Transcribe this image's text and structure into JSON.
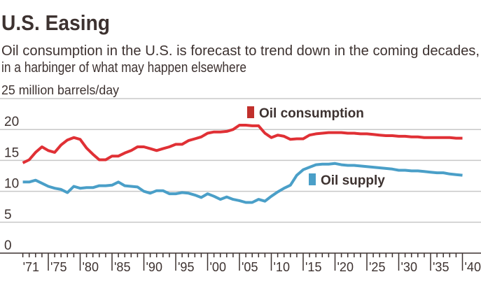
{
  "chart_data": {
    "type": "line",
    "title": "U.S. Easing",
    "subtitle_lines": [
      "Oil consumption in the U.S. is forecast to trend down in the coming decades,",
      "in a harbinger of what may happen elsewhere"
    ],
    "ylabel": "25 million barrels/day",
    "ylim": [
      0,
      25
    ],
    "yticks": [
      0,
      5,
      10,
      15,
      20
    ],
    "ytick_labels": [
      "0",
      "5",
      "10",
      "15",
      "20"
    ],
    "xlim": [
      1971,
      2040
    ],
    "xtick_values": [
      1971,
      1975,
      1980,
      1985,
      1990,
      1995,
      2000,
      2005,
      2010,
      2015,
      2020,
      2025,
      2030,
      2035,
      2040
    ],
    "xtick_labels": [
      "'71",
      "'75",
      "'80",
      "'85",
      "'90",
      "'95",
      "'00",
      "'05",
      "'10",
      "'15",
      "'20",
      "'25",
      "'30",
      "'35",
      "'40"
    ],
    "grid": true,
    "x_start": 1971,
    "series": [
      {
        "name": "Oil consumption",
        "color": "#e03035",
        "values": [
          14.6,
          15.1,
          16.3,
          17.2,
          16.6,
          16.3,
          17.5,
          18.3,
          18.7,
          18.4,
          17.0,
          16.0,
          15.1,
          15.1,
          15.7,
          15.7,
          16.2,
          16.6,
          17.2,
          17.2,
          16.9,
          16.6,
          16.9,
          17.2,
          17.6,
          17.6,
          18.2,
          18.5,
          18.8,
          19.4,
          19.6,
          19.6,
          19.7,
          20.0,
          20.7,
          20.7,
          20.6,
          20.6,
          19.4,
          18.7,
          19.1,
          18.9,
          18.4,
          18.5,
          18.5,
          19.1,
          19.3,
          19.4,
          19.5,
          19.5,
          19.5,
          19.4,
          19.4,
          19.3,
          19.3,
          19.2,
          19.1,
          19.0,
          19.0,
          18.9,
          18.9,
          18.8,
          18.8,
          18.7,
          18.7,
          18.7,
          18.7,
          18.7,
          18.6,
          18.6
        ]
      },
      {
        "name": "Oil supply",
        "color": "#4a9fc8",
        "values": [
          11.5,
          11.5,
          11.8,
          11.3,
          10.8,
          10.5,
          10.3,
          9.8,
          10.8,
          10.5,
          10.6,
          10.6,
          10.9,
          10.9,
          11.0,
          11.5,
          10.9,
          10.8,
          10.7,
          10.0,
          9.7,
          10.1,
          10.1,
          9.6,
          9.6,
          9.8,
          9.7,
          9.4,
          9.0,
          9.6,
          9.2,
          8.7,
          9.1,
          8.7,
          8.5,
          8.2,
          8.2,
          8.7,
          8.4,
          9.2,
          9.9,
          10.5,
          11.0,
          12.6,
          13.5,
          13.9,
          14.3,
          14.4,
          14.4,
          14.5,
          14.3,
          14.2,
          14.2,
          14.1,
          14.0,
          13.9,
          13.8,
          13.7,
          13.6,
          13.4,
          13.4,
          13.3,
          13.3,
          13.2,
          13.1,
          13.0,
          13.0,
          12.8,
          12.7,
          12.6
        ]
      }
    ],
    "legend": [
      {
        "label": "Oil consumption",
        "color": "#c0302c"
      },
      {
        "label": "Oil supply",
        "color": "#4a9fc8"
      }
    ]
  }
}
